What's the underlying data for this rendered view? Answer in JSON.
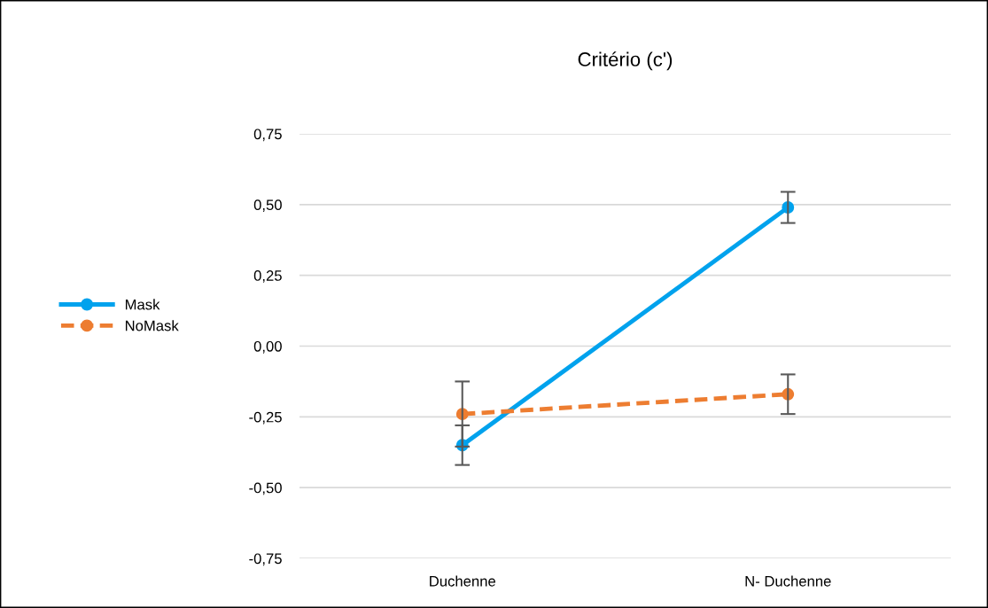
{
  "chart_data": {
    "type": "line",
    "title": "Critério (c')",
    "categories": [
      "Duchenne",
      "N- Duchenne"
    ],
    "series": [
      {
        "name": "Mask",
        "color": "#00a2ed",
        "values": [
          -0.35,
          0.49
        ],
        "errors": [
          0.07,
          0.055
        ],
        "line_style": "solid"
      },
      {
        "name": "NoMask",
        "color": "#ed7d31",
        "values": [
          -0.24,
          -0.17
        ],
        "errors": [
          0.115,
          0.07
        ],
        "line_style": "dashed"
      }
    ],
    "ylim": [
      -0.75,
      0.75
    ],
    "yticks": [
      {
        "value": -0.75,
        "label": "-0,75"
      },
      {
        "value": -0.5,
        "label": "-0,50"
      },
      {
        "value": -0.25,
        "label": "-0,25"
      },
      {
        "value": 0,
        "label": "0,00"
      },
      {
        "value": 0.25,
        "label": "0,25"
      },
      {
        "value": 0.5,
        "label": "0,50"
      },
      {
        "value": 0.75,
        "label": "0,75"
      }
    ],
    "grid": "y",
    "legend": "left",
    "marker": "circle"
  }
}
